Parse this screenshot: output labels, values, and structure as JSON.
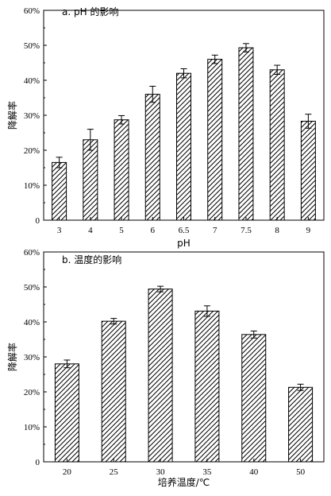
{
  "chart_data": [
    {
      "type": "bar",
      "title": "a. pH 的影响",
      "xlabel": "pH",
      "ylabel": "降解率",
      "ylim": [
        0,
        60
      ],
      "yticks": [
        "0",
        "10%",
        "20%",
        "30%",
        "40%",
        "50%",
        "60%"
      ],
      "categories": [
        "3",
        "4",
        "5",
        "6",
        "6.5",
        "7",
        "7.5",
        "8",
        "9"
      ],
      "values": [
        16.5,
        23.0,
        28.7,
        36.0,
        42.0,
        46.0,
        49.3,
        43.0,
        28.3
      ],
      "errors": [
        1.5,
        3.0,
        1.2,
        2.3,
        1.3,
        1.2,
        1.2,
        1.3,
        2.0
      ],
      "fill": "diagonal-hatch",
      "grid": false
    },
    {
      "type": "bar",
      "title": "b. 温度的影响",
      "xlabel": "培养温度/℃",
      "ylabel": "降解率",
      "ylim": [
        0,
        60
      ],
      "yticks": [
        "0",
        "10%",
        "20%",
        "30%",
        "40%",
        "50%",
        "60%"
      ],
      "categories": [
        "20",
        "25",
        "30",
        "35",
        "40",
        "50"
      ],
      "values": [
        28.0,
        40.2,
        49.4,
        43.1,
        36.4,
        21.3
      ],
      "errors": [
        1.1,
        0.8,
        0.8,
        1.5,
        1.0,
        0.9
      ],
      "fill": "diagonal-hatch",
      "grid": false
    }
  ]
}
